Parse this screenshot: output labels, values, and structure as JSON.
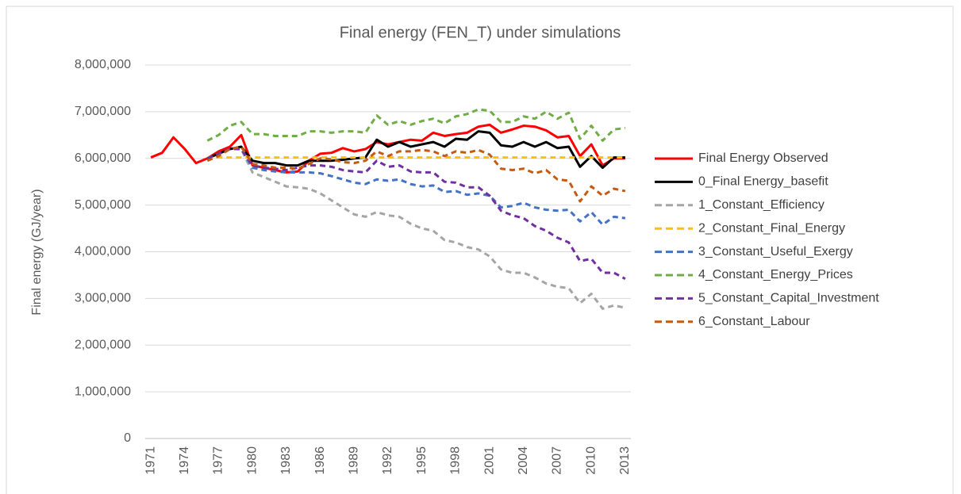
{
  "chart_data": {
    "type": "line",
    "title": "Final energy (FEN_T) under simulations",
    "y_label": "Final energy (GJ/year)",
    "categories": [
      "1971",
      null,
      null,
      "1974",
      null,
      null,
      "1977",
      null,
      null,
      "1980",
      null,
      null,
      "1983",
      null,
      null,
      "1986",
      null,
      null,
      "1989",
      null,
      null,
      "1992",
      null,
      null,
      "1995",
      null,
      null,
      "1998",
      null,
      null,
      "2001",
      null,
      null,
      "2004",
      null,
      null,
      "2007",
      null,
      null,
      "2010",
      null,
      null,
      "2013"
    ],
    "ylim": [
      0,
      8000000
    ],
    "yticks": [
      0,
      {
        "value": 1000000,
        "label": "1,000,000"
      },
      {
        "value": 2000000,
        "label": "2,000,000"
      },
      {
        "value": 3000000,
        "label": "3,000,000"
      },
      {
        "value": 4000000,
        "label": "4,000,000"
      },
      {
        "value": 5000000,
        "label": "5,000,000"
      },
      {
        "value": 6000000,
        "label": "6,000,000"
      },
      {
        "value": 7000000,
        "label": "7,000,000"
      },
      {
        "value": 8000000,
        "label": "8,000,000"
      }
    ],
    "grid": true,
    "legend": "right",
    "series": [
      {
        "name": "Final Energy Observed",
        "color": "#ff0000",
        "style": "solid",
        "values": [
          6020000,
          6120000,
          6450000,
          6200000,
          5900000,
          6000000,
          6150000,
          6250000,
          6500000,
          5850000,
          5800000,
          5750000,
          5700000,
          5720000,
          5950000,
          6100000,
          6120000,
          6220000,
          6150000,
          6200000,
          6350000,
          6300000,
          6350000,
          6400000,
          6380000,
          6550000,
          6480000,
          6520000,
          6550000,
          6680000,
          6720000,
          6550000,
          6620000,
          6700000,
          6680000,
          6600000,
          6450000,
          6480000,
          6050000,
          6300000,
          5850000,
          6000000,
          6000000
        ]
      },
      {
        "name": "0_Final Energy_basefit",
        "color": "#000000",
        "style": "solid",
        "values": [
          null,
          null,
          null,
          null,
          null,
          6000000,
          6100000,
          6200000,
          6250000,
          5950000,
          5900000,
          5900000,
          5850000,
          5850000,
          5950000,
          5950000,
          5950000,
          5970000,
          6000000,
          6020000,
          6400000,
          6250000,
          6350000,
          6250000,
          6300000,
          6350000,
          6250000,
          6420000,
          6400000,
          6580000,
          6550000,
          6280000,
          6250000,
          6350000,
          6250000,
          6350000,
          6220000,
          6250000,
          5820000,
          6050000,
          5800000,
          6020000,
          6020000
        ]
      },
      {
        "name": "1_Constant_Efficiency",
        "color": "#a5a5a5",
        "style": "dashed",
        "values": [
          null,
          null,
          null,
          null,
          null,
          6000000,
          6100000,
          6200000,
          6200000,
          5700000,
          5600000,
          5500000,
          5400000,
          5380000,
          5350000,
          5250000,
          5100000,
          4950000,
          4800000,
          4750000,
          4850000,
          4780000,
          4750000,
          4600000,
          4500000,
          4450000,
          4250000,
          4200000,
          4100000,
          4050000,
          3900000,
          3620000,
          3550000,
          3550000,
          3450000,
          3320000,
          3250000,
          3220000,
          2900000,
          3100000,
          2780000,
          2850000,
          2800000
        ]
      },
      {
        "name": "2_Constant_Final_Energy",
        "color": "#ffc000",
        "style": "dashed",
        "values": [
          null,
          null,
          null,
          null,
          null,
          6020000,
          6020000,
          6020000,
          6020000,
          6020000,
          6020000,
          6020000,
          6020000,
          6020000,
          6020000,
          6020000,
          6020000,
          6020000,
          6020000,
          6020000,
          6020000,
          6020000,
          6020000,
          6020000,
          6020000,
          6020000,
          6020000,
          6020000,
          6020000,
          6020000,
          6020000,
          6020000,
          6020000,
          6020000,
          6020000,
          6020000,
          6020000,
          6020000,
          6020000,
          6020000,
          6020000,
          6020000,
          6020000
        ]
      },
      {
        "name": "3_Constant_Useful_Exergy",
        "color": "#4472c4",
        "style": "dashed",
        "values": [
          null,
          null,
          null,
          null,
          null,
          6000000,
          6100000,
          6200000,
          6200000,
          5800000,
          5750000,
          5720000,
          5700000,
          5700000,
          5700000,
          5680000,
          5620000,
          5550000,
          5480000,
          5450000,
          5550000,
          5520000,
          5550000,
          5450000,
          5400000,
          5420000,
          5280000,
          5300000,
          5220000,
          5250000,
          5200000,
          4950000,
          4980000,
          5050000,
          4950000,
          4900000,
          4880000,
          4900000,
          4650000,
          4850000,
          4580000,
          4750000,
          4720000
        ]
      },
      {
        "name": "4_Constant_Energy_Prices",
        "color": "#70ad47",
        "style": "dashed",
        "values": [
          null,
          null,
          null,
          null,
          null,
          6380000,
          6500000,
          6700000,
          6780000,
          6520000,
          6520000,
          6480000,
          6480000,
          6480000,
          6580000,
          6580000,
          6550000,
          6580000,
          6580000,
          6550000,
          6920000,
          6720000,
          6800000,
          6720000,
          6800000,
          6850000,
          6750000,
          6900000,
          6950000,
          7050000,
          7020000,
          6780000,
          6780000,
          6900000,
          6850000,
          7000000,
          6850000,
          6980000,
          6420000,
          6700000,
          6380000,
          6620000,
          6650000
        ]
      },
      {
        "name": "5_Constant_Capital_Investment",
        "color": "#7030a0",
        "style": "dashed",
        "values": [
          null,
          null,
          null,
          null,
          null,
          6000000,
          6100000,
          6200000,
          6200000,
          5850000,
          5800000,
          5780000,
          5750000,
          5800000,
          5850000,
          5850000,
          5820000,
          5750000,
          5720000,
          5700000,
          5950000,
          5820000,
          5850000,
          5720000,
          5700000,
          5700000,
          5500000,
          5480000,
          5380000,
          5380000,
          5200000,
          4880000,
          4780000,
          4720000,
          4550000,
          4450000,
          4300000,
          4200000,
          3800000,
          3850000,
          3550000,
          3550000,
          3420000
        ]
      },
      {
        "name": "6_Constant_Labour",
        "color": "#c55a11",
        "style": "dashed",
        "values": [
          null,
          null,
          null,
          null,
          null,
          5950000,
          6050000,
          6200000,
          6250000,
          5880000,
          5850000,
          5800000,
          5800000,
          5780000,
          5880000,
          6000000,
          5980000,
          5920000,
          5900000,
          5950000,
          6150000,
          6050000,
          6150000,
          6150000,
          6180000,
          6150000,
          6050000,
          6150000,
          6120000,
          6180000,
          6080000,
          5780000,
          5750000,
          5780000,
          5680000,
          5750000,
          5550000,
          5520000,
          5080000,
          5400000,
          5200000,
          5350000,
          5300000
        ]
      }
    ]
  }
}
